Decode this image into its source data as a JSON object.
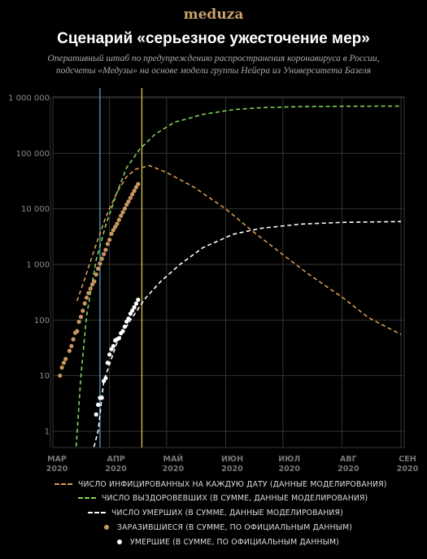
{
  "brand": "meduza",
  "title": "Сценарий «серьезное ужесточение мер»",
  "subtitle_line1": "Оперативный штаб по предупреждению распространения коронавируса в России,",
  "subtitle_line2": "подсчеты «Медузы» на основе модели группы Нейера из Университета Базеля",
  "colors": {
    "infected_model": "#d99a55",
    "recovered_model": "#7fd35a",
    "deaths_model": "#ffffff",
    "infected_official": "#c99660",
    "deaths_official": "#ffffff",
    "line_blue": "#4aa3c7",
    "line_yellow": "#d8c84a"
  },
  "chart_data": {
    "type": "line",
    "yscale": "log",
    "ylim": [
      1,
      1000000
    ],
    "y_ticks": [
      "1",
      "10",
      "100",
      "1 000",
      "10 000",
      "100 000",
      "1 000 000"
    ],
    "x_ticks": [
      {
        "month": "МАР",
        "year": "2020"
      },
      {
        "month": "АПР",
        "year": "2020"
      },
      {
        "month": "МАЙ",
        "year": "2020"
      },
      {
        "month": "ИЮН",
        "year": "2020"
      },
      {
        "month": "ИЮЛ",
        "year": "2020"
      },
      {
        "month": "АВГ",
        "year": "2020"
      },
      {
        "month": "СЕН",
        "year": "2020"
      }
    ],
    "xlim": [
      "2020-03-01",
      "2020-09-01"
    ],
    "vertical_lines": [
      {
        "date": "2020-03-27",
        "color": "blue"
      },
      {
        "date": "2020-04-18",
        "color": "yellow"
      }
    ],
    "series": [
      {
        "name": "ЧИСЛО ИНФИЦИРОВАННЫХ НА КАЖДУЮ ДАТУ (ДАННЫЕ МОДЕЛИРОВАНИЯ)",
        "style": "dashed",
        "color_key": "infected_model",
        "points": [
          [
            "2020-03-15",
            220
          ],
          [
            "2020-03-20",
            700
          ],
          [
            "2020-03-25",
            2300
          ],
          [
            "2020-03-30",
            7000
          ],
          [
            "2020-04-05",
            20000
          ],
          [
            "2020-04-10",
            38000
          ],
          [
            "2020-04-15",
            52000
          ],
          [
            "2020-04-22",
            60000
          ],
          [
            "2020-05-01",
            45000
          ],
          [
            "2020-05-15",
            25000
          ],
          [
            "2020-06-01",
            10000
          ],
          [
            "2020-06-15",
            4000
          ],
          [
            "2020-07-01",
            1500
          ],
          [
            "2020-07-15",
            650
          ],
          [
            "2020-08-01",
            260
          ],
          [
            "2020-08-15",
            110
          ],
          [
            "2020-09-01",
            55
          ]
        ]
      },
      {
        "name": "ЧИСЛО ВЫЗДОРОВЕВШИХ (В СУММЕ, ДАННЫЕ МОДЕЛИРОВАНИЯ)",
        "style": "dashed",
        "color_key": "recovered_model",
        "points": [
          [
            "2020-03-14",
            0.3
          ],
          [
            "2020-03-17",
            10
          ],
          [
            "2020-03-20",
            120
          ],
          [
            "2020-03-25",
            1200
          ],
          [
            "2020-03-30",
            5000
          ],
          [
            "2020-04-05",
            20000
          ],
          [
            "2020-04-10",
            55000
          ],
          [
            "2020-04-17",
            120000
          ],
          [
            "2020-04-25",
            220000
          ],
          [
            "2020-05-05",
            360000
          ],
          [
            "2020-05-20",
            500000
          ],
          [
            "2020-06-05",
            610000
          ],
          [
            "2020-06-20",
            660000
          ],
          [
            "2020-07-10",
            690000
          ],
          [
            "2020-08-01",
            700000
          ],
          [
            "2020-09-01",
            705000
          ]
        ]
      },
      {
        "name": "ЧИСЛО УМЕРШИХ (В СУММЕ, ДАННЫЕ МОДЕЛИРОВАНИЯ)",
        "style": "dashed",
        "color_key": "deaths_model",
        "points": [
          [
            "2020-03-22",
            0.3
          ],
          [
            "2020-03-26",
            1
          ],
          [
            "2020-03-29",
            8
          ],
          [
            "2020-04-05",
            40
          ],
          [
            "2020-04-12",
            100
          ],
          [
            "2020-04-20",
            250
          ],
          [
            "2020-04-28",
            500
          ],
          [
            "2020-05-08",
            1000
          ],
          [
            "2020-05-20",
            2000
          ],
          [
            "2020-06-05",
            3500
          ],
          [
            "2020-06-20",
            4500
          ],
          [
            "2020-07-10",
            5300
          ],
          [
            "2020-08-01",
            5700
          ],
          [
            "2020-09-01",
            5900
          ]
        ]
      },
      {
        "name": "ЗАРАЗИВШИЕСЯ (В СУММЕ, ПО ОФИЦИАЛЬНЫМ ДАННЫМ)",
        "style": "dots",
        "color_key": "infected_official",
        "points": [
          [
            "2020-03-06",
            10
          ],
          [
            "2020-03-07",
            14
          ],
          [
            "2020-03-08",
            17
          ],
          [
            "2020-03-09",
            20
          ],
          [
            "2020-03-11",
            28
          ],
          [
            "2020-03-12",
            34
          ],
          [
            "2020-03-13",
            45
          ],
          [
            "2020-03-14",
            59
          ],
          [
            "2020-03-15",
            63
          ],
          [
            "2020-03-16",
            93
          ],
          [
            "2020-03-17",
            114
          ],
          [
            "2020-03-18",
            147
          ],
          [
            "2020-03-19",
            199
          ],
          [
            "2020-03-20",
            253
          ],
          [
            "2020-03-21",
            306
          ],
          [
            "2020-03-22",
            367
          ],
          [
            "2020-03-23",
            438
          ],
          [
            "2020-03-24",
            495
          ],
          [
            "2020-03-25",
            658
          ],
          [
            "2020-03-26",
            840
          ],
          [
            "2020-03-27",
            1036
          ],
          [
            "2020-03-28",
            1264
          ],
          [
            "2020-03-29",
            1534
          ],
          [
            "2020-03-30",
            1836
          ],
          [
            "2020-03-31",
            2337
          ],
          [
            "2020-04-01",
            2777
          ],
          [
            "2020-04-02",
            3548
          ],
          [
            "2020-04-03",
            4149
          ],
          [
            "2020-04-04",
            4731
          ],
          [
            "2020-04-05",
            5389
          ],
          [
            "2020-04-06",
            6343
          ],
          [
            "2020-04-07",
            7497
          ],
          [
            "2020-04-08",
            8672
          ],
          [
            "2020-04-09",
            10131
          ],
          [
            "2020-04-10",
            11917
          ],
          [
            "2020-04-11",
            13584
          ],
          [
            "2020-04-12",
            15770
          ],
          [
            "2020-04-13",
            18328
          ],
          [
            "2020-04-14",
            21102
          ],
          [
            "2020-04-15",
            24490
          ],
          [
            "2020-04-16",
            27938
          ]
        ]
      },
      {
        "name": "УМЕРШИЕ (В СУММЕ, ПО ОФИЦИАЛЬНЫМ ДАННЫМ)",
        "style": "dots",
        "color_key": "deaths_official",
        "points": [
          [
            "2020-03-25",
            2
          ],
          [
            "2020-03-26",
            3
          ],
          [
            "2020-03-27",
            4
          ],
          [
            "2020-03-28",
            4
          ],
          [
            "2020-03-29",
            8
          ],
          [
            "2020-03-30",
            9
          ],
          [
            "2020-03-31",
            17
          ],
          [
            "2020-04-01",
            24
          ],
          [
            "2020-04-02",
            30
          ],
          [
            "2020-04-03",
            34
          ],
          [
            "2020-04-04",
            43
          ],
          [
            "2020-04-05",
            45
          ],
          [
            "2020-04-06",
            47
          ],
          [
            "2020-04-07",
            58
          ],
          [
            "2020-04-08",
            63
          ],
          [
            "2020-04-09",
            76
          ],
          [
            "2020-04-10",
            94
          ],
          [
            "2020-04-11",
            106
          ],
          [
            "2020-04-12",
            130
          ],
          [
            "2020-04-13",
            148
          ],
          [
            "2020-04-14",
            170
          ],
          [
            "2020-04-15",
            198
          ],
          [
            "2020-04-16",
            232
          ]
        ]
      }
    ]
  }
}
